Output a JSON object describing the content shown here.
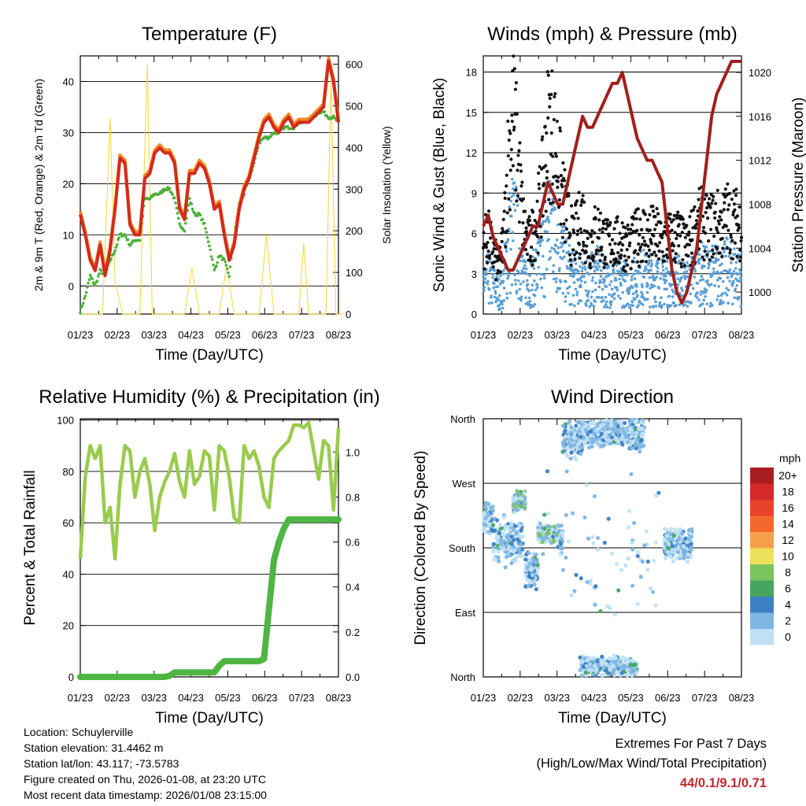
{
  "dates": [
    "01/23",
    "02/23",
    "03/23",
    "04/23",
    "05/23",
    "06/23",
    "07/23",
    "08/23"
  ],
  "xlabel": "Time (Day/UTC)",
  "charts": {
    "temperature": {
      "type": "line",
      "title": "Temperature (F)",
      "ylabel_left": "2m & 9m T (Red, Orange) & 2m Td (Green)",
      "ylabel_right": "Solar Insolation (Yellow)",
      "yticks_left": [
        0,
        10,
        20,
        30,
        40
      ],
      "yticks_right": [
        0,
        100,
        200,
        300,
        400,
        500,
        600
      ],
      "ylim_left": [
        -5.5,
        45
      ],
      "ylim_right": [
        0,
        620
      ],
      "colors": {
        "t2m": "#d42a1c",
        "t9m": "#f08a24",
        "td": "#4caf3a",
        "solar": "#f5d633"
      },
      "t2m": [
        14,
        10,
        5,
        3,
        8,
        2,
        7,
        15,
        25,
        24,
        12,
        10,
        10,
        21,
        22,
        26,
        27,
        26,
        26,
        24,
        15,
        13,
        22,
        22,
        24,
        23,
        20,
        15,
        16,
        10,
        5,
        8,
        15,
        19,
        21,
        25,
        29,
        32,
        33,
        31,
        30,
        32,
        33,
        31,
        32,
        32,
        32,
        33,
        34,
        35,
        44,
        40,
        32
      ],
      "td": [
        -5,
        -2,
        2,
        0,
        3,
        2,
        5,
        7,
        10,
        10,
        8,
        9,
        9,
        17,
        17,
        18,
        18,
        19,
        19,
        17,
        12,
        11,
        17,
        14,
        14,
        12,
        8,
        3,
        6,
        5,
        2,
        10,
        16,
        18,
        21,
        24,
        28,
        29,
        29,
        30,
        30,
        31,
        31,
        31,
        32,
        32,
        33,
        33,
        34,
        34,
        33,
        33,
        32
      ],
      "solar": [
        [
          0,
          0
        ],
        [
          4.5,
          0
        ],
        [
          6,
          470
        ],
        [
          7,
          80
        ],
        [
          8.5,
          0
        ],
        [
          12,
          0
        ],
        [
          13.5,
          600
        ],
        [
          14.5,
          0
        ],
        [
          21,
          0
        ],
        [
          22.5,
          110
        ],
        [
          24,
          0
        ],
        [
          28,
          0
        ],
        [
          29.5,
          120
        ],
        [
          31,
          0
        ],
        [
          36,
          0
        ],
        [
          37.5,
          190
        ],
        [
          39,
          0
        ],
        [
          44,
          0
        ],
        [
          45,
          170
        ],
        [
          46,
          0
        ],
        [
          49.5,
          0
        ],
        [
          50.5,
          560
        ],
        [
          51.5,
          0
        ],
        [
          53,
          0
        ]
      ]
    },
    "winds": {
      "type": "scatter",
      "title": "Winds (mph) & Pressure (mb)",
      "ylabel_left": "Sonic Wind & Gust (Blue, Black)",
      "ylabel_right": "Station Pressure (Maroon)",
      "yticks_left": [
        0,
        3,
        6,
        9,
        12,
        15,
        18
      ],
      "yticks_right": [
        1000,
        1004,
        1008,
        1012,
        1016,
        1020
      ],
      "ylim_left": [
        0,
        19.2
      ],
      "ylim_right": [
        998,
        1021.5
      ],
      "colors": {
        "wind": "#5a9fd6",
        "gust": "#111111",
        "pressure": "#a0201e"
      },
      "pressure": [
        1006,
        1007,
        1005,
        1004,
        1003,
        1002,
        1002,
        1003,
        1004,
        1005,
        1006,
        1006,
        1008,
        1010,
        1009,
        1008,
        1008,
        1010,
        1012,
        1014,
        1016,
        1015,
        1015,
        1016,
        1017,
        1018,
        1019,
        1019,
        1020,
        1018,
        1016,
        1014,
        1013,
        1012,
        1012,
        1011,
        1010,
        1006,
        1002,
        1000,
        999,
        1000,
        1002,
        1004,
        1008,
        1012,
        1016,
        1018,
        1019,
        1020,
        1021,
        1021,
        1021
      ],
      "wind_mean": [
        2.3,
        2.5,
        2.2,
        1.5,
        2.0,
        5,
        6.2,
        5,
        3,
        2.2,
        2.6,
        3.3,
        4.5,
        6.8,
        7,
        5.5,
        4,
        3.2,
        2.5,
        2.8,
        3.2,
        2.4,
        2.6,
        2.8,
        2.5,
        2.2,
        2.4,
        2.3,
        2.4,
        2.2,
        2.3,
        2.5,
        2.8,
        2.5,
        2.6,
        2.5,
        2.3,
        2.5,
        2.4,
        2.6,
        2.3,
        2.2,
        2.5,
        2.9,
        3.0,
        2.8,
        2.9,
        3.0,
        2.8,
        3.2,
        3.0,
        3.0,
        2.8
      ],
      "gust_mean": [
        4.5,
        5,
        4,
        3,
        4.5,
        10,
        13,
        10,
        6,
        4.5,
        5.2,
        6.5,
        8.5,
        12,
        12,
        10,
        7.5,
        6.2,
        4.8,
        5.5,
        6.5,
        4.5,
        5,
        5.5,
        5,
        4.5,
        4.8,
        4.6,
        4.8,
        4.4,
        4.6,
        5,
        5.5,
        5,
        5.2,
        5,
        4.6,
        5,
        4.8,
        5.2,
        4.6,
        4.4,
        5,
        5.8,
        6,
        5.6,
        5.8,
        6,
        5.6,
        6.4,
        6,
        6,
        5.6
      ]
    },
    "humidity": {
      "type": "line",
      "title": "Relative Humidity (%) & Precipitation (in)",
      "ylabel_left": "Percent & Total Rainfall",
      "yticks_left": [
        0,
        20,
        40,
        60,
        80,
        100
      ],
      "yticks_right": [
        "0.0",
        "0.2",
        "0.4",
        "0.6",
        "0.8",
        "1.0"
      ],
      "ylim_left": [
        0,
        100.5
      ],
      "ylim_right": [
        0,
        1.148
      ],
      "colors": {
        "rh": "#9acb4e",
        "precip": "#4fb543"
      },
      "rh": [
        46,
        78,
        90,
        85,
        90,
        60,
        66,
        46,
        75,
        90,
        88,
        70,
        80,
        85,
        75,
        57,
        70,
        76,
        80,
        87,
        76,
        70,
        88,
        75,
        78,
        88,
        86,
        65,
        90,
        88,
        78,
        62,
        60,
        90,
        85,
        88,
        82,
        70,
        66,
        85,
        88,
        90,
        92,
        98,
        98,
        97,
        99,
        88,
        77,
        92,
        90,
        65,
        97
      ],
      "precip": [
        0,
        0,
        0,
        0,
        0,
        0,
        0,
        0,
        0,
        0,
        0,
        0,
        0,
        0,
        0,
        0,
        0,
        0,
        0.005,
        0.02,
        0.02,
        0.02,
        0.02,
        0.02,
        0.02,
        0.02,
        0.02,
        0.02,
        0.05,
        0.07,
        0.07,
        0.07,
        0.07,
        0.07,
        0.07,
        0.07,
        0.07,
        0.08,
        0.3,
        0.52,
        0.6,
        0.66,
        0.7,
        0.7,
        0.7,
        0.7,
        0.7,
        0.7,
        0.7,
        0.7,
        0.7,
        0.7,
        0.7
      ]
    },
    "direction": {
      "type": "scatter",
      "title": "Wind Direction",
      "ylabel_left": "Direction (Colored By Speed)",
      "ylabels": [
        "North",
        "East",
        "South",
        "West",
        "North"
      ],
      "ylim": [
        0,
        360
      ],
      "clusters": [
        {
          "t0": 0,
          "t1": 2,
          "d": 220,
          "spread": 25,
          "n": 60
        },
        {
          "t0": 2,
          "t1": 8,
          "d": 190,
          "spread": 40,
          "n": 150
        },
        {
          "t0": 6,
          "t1": 8.5,
          "d": 245,
          "spread": 18,
          "n": 80
        },
        {
          "t0": 8.5,
          "t1": 11,
          "d": 150,
          "spread": 30,
          "n": 90
        },
        {
          "t0": 11,
          "t1": 15,
          "d": 200,
          "spread": 15,
          "n": 140
        },
        {
          "t0": 15,
          "t1": 16,
          "d": 190,
          "spread": 25,
          "n": 40
        },
        {
          "t0": 16,
          "t1": 20,
          "d": 330,
          "spread": 28,
          "n": 140
        },
        {
          "t0": 19.5,
          "t1": 31,
          "d": 340,
          "spread": 22,
          "n": 420
        },
        {
          "t0": 19.5,
          "t1": 31,
          "d": 15,
          "spread": 15,
          "n": 300
        },
        {
          "t0": 29.5,
          "t1": 32.5,
          "d": 340,
          "spread": 30,
          "n": 80
        },
        {
          "t0": 36.5,
          "t1": 42,
          "d": 185,
          "spread": 25,
          "n": 220
        },
        {
          "t0": 12,
          "t1": 36,
          "d": 180,
          "spread": 120,
          "n": 70
        }
      ],
      "legend_title": "mph",
      "legend_labels": [
        "20+",
        "18",
        "16",
        "14",
        "12",
        "10",
        "8",
        "6",
        "4",
        "2",
        "0"
      ],
      "legend_colors": [
        "#a81d21",
        "#d42a2a",
        "#e8432b",
        "#f26a2b",
        "#f7a04c",
        "#ede05a",
        "#7cc45c",
        "#46a561",
        "#3c7fc4",
        "#7fb6e3",
        "#bfe0f5"
      ]
    }
  },
  "info": {
    "location": "Location: Schuylerville",
    "elevation": "Station elevation: 31.4462 m",
    "latlon": "Station lat/lon: 43.117; -73.5783",
    "created": "Figure created on Thu, 2026-01-08, at 23:20 UTC",
    "recent": "Most recent data timestamp: 2026/01/08 23:15:00"
  },
  "extremes": {
    "title": "Extremes For Past 7 Days",
    "subtitle": "(High/Low/Max Wind/Total Precipitation)",
    "values": "44/0.1/9.1/0.71"
  }
}
